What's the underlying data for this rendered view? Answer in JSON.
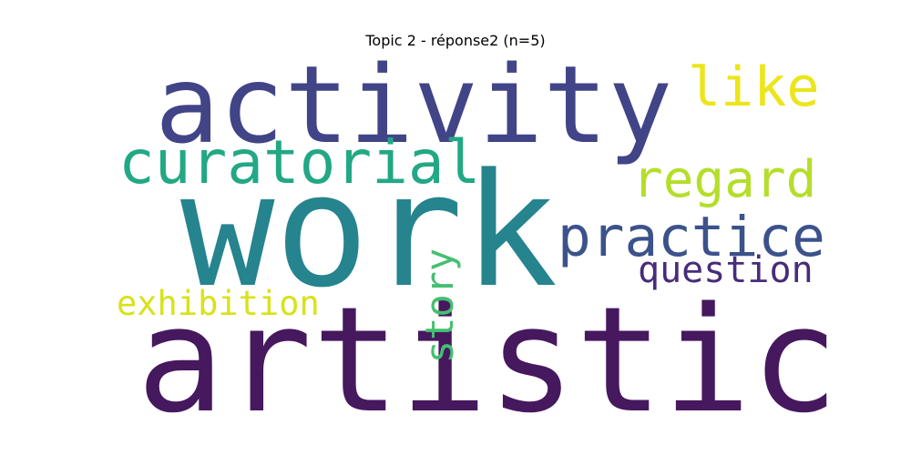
{
  "title": "Topic 2 - réponse2 (n=5)",
  "words": {
    "artistic": {
      "text": "artistic",
      "color": "#46185e"
    },
    "work": {
      "text": "work",
      "color": "#25848e"
    },
    "activity": {
      "text": "activity",
      "color": "#414487"
    },
    "curatorial": {
      "text": "curatorial",
      "color": "#22a884"
    },
    "practice": {
      "text": "practice",
      "color": "#3b528b"
    },
    "regard": {
      "text": "regard",
      "color": "#b5de2b"
    },
    "like": {
      "text": "like",
      "color": "#ece51b"
    },
    "question": {
      "text": "question",
      "color": "#472c7a"
    },
    "exhibition": {
      "text": "exhibition",
      "color": "#d8e219"
    },
    "story": {
      "text": "story",
      "color": "#44bf70"
    }
  }
}
